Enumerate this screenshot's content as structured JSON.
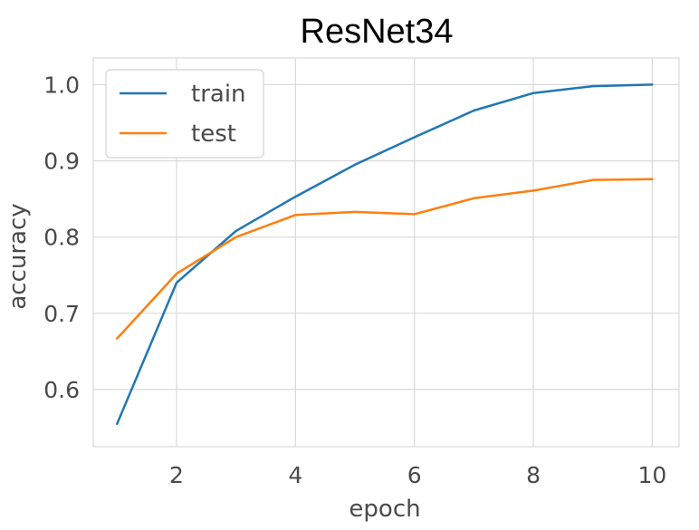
{
  "chart_data": {
    "type": "line",
    "title": "ResNet34",
    "xlabel": "epoch",
    "ylabel": "accuracy",
    "xlim": [
      0.6,
      10.45
    ],
    "ylim": [
      0.525,
      1.035
    ],
    "xticks": [
      2,
      4,
      6,
      8,
      10
    ],
    "xtick_labels": [
      "2",
      "4",
      "6",
      "8",
      "10"
    ],
    "yticks": [
      0.6,
      0.7,
      0.8,
      0.9,
      1.0
    ],
    "ytick_labels": [
      "0.6",
      "0.7",
      "0.8",
      "0.9",
      "1.0"
    ],
    "grid": true,
    "legend_position": "top-left",
    "x": [
      1,
      2,
      3,
      4,
      5,
      6,
      7,
      8,
      9,
      10
    ],
    "series": [
      {
        "name": "train",
        "color": "#1f77b4",
        "values": [
          0.555,
          0.74,
          0.808,
          0.853,
          0.895,
          0.931,
          0.966,
          0.989,
          0.998,
          1.0
        ]
      },
      {
        "name": "test",
        "color": "#ff7f0e",
        "values": [
          0.667,
          0.752,
          0.8,
          0.829,
          0.833,
          0.83,
          0.851,
          0.861,
          0.875,
          0.876
        ]
      }
    ]
  }
}
